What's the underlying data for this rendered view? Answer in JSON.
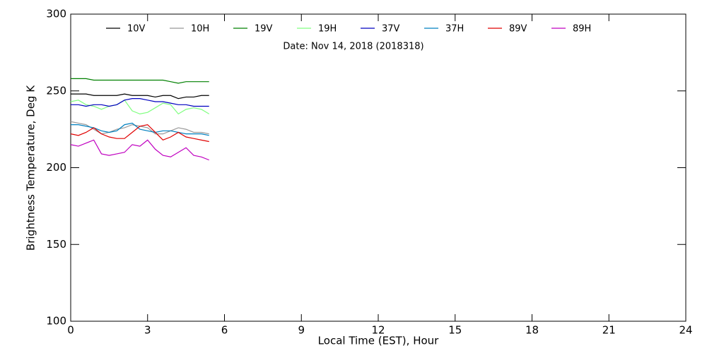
{
  "chart_data": {
    "type": "line",
    "subtitle": "Date: Nov 14, 2018 (2018318)",
    "xlabel": "Local Time (EST), Hour",
    "ylabel": "Brightness Temperature, Deg K",
    "x": [
      0,
      0.3,
      0.6,
      0.9,
      1.2,
      1.5,
      1.8,
      2.1,
      2.4,
      2.7,
      3.0,
      3.3,
      3.6,
      3.9,
      4.2,
      4.5,
      4.8,
      5.1,
      5.4
    ],
    "xlim": [
      0,
      24
    ],
    "xticks": [
      0,
      3,
      6,
      9,
      12,
      15,
      18,
      21,
      24
    ],
    "ylim": [
      100,
      300
    ],
    "yticks": [
      100,
      150,
      200,
      250,
      300
    ],
    "series": [
      {
        "name": "10V",
        "color": "#000000",
        "values": [
          248,
          248,
          248,
          247,
          247,
          247,
          247,
          248,
          247,
          247,
          247,
          246,
          247,
          247,
          245,
          246,
          246,
          247,
          247
        ]
      },
      {
        "name": "10H",
        "color": "#999999",
        "values": [
          230,
          229,
          228,
          225,
          222,
          223,
          225,
          226,
          228,
          227,
          226,
          222,
          222,
          224,
          226,
          225,
          223,
          223,
          222
        ]
      },
      {
        "name": "19V",
        "color": "#008000",
        "values": [
          258,
          258,
          258,
          257,
          257,
          257,
          257,
          257,
          257,
          257,
          257,
          257,
          257,
          256,
          255,
          256,
          256,
          256,
          256
        ]
      },
      {
        "name": "19H",
        "color": "#80ff80",
        "values": [
          243,
          244,
          241,
          240,
          238,
          240,
          241,
          244,
          237,
          235,
          236,
          239,
          242,
          241,
          235,
          238,
          239,
          238,
          235
        ]
      },
      {
        "name": "37V",
        "color": "#0000c0",
        "values": [
          241,
          241,
          240,
          241,
          241,
          240,
          241,
          244,
          245,
          245,
          244,
          243,
          243,
          242,
          241,
          241,
          240,
          240,
          240
        ]
      },
      {
        "name": "37H",
        "color": "#0080c0",
        "values": [
          228,
          228,
          227,
          226,
          224,
          223,
          224,
          228,
          229,
          225,
          224,
          223,
          224,
          224,
          223,
          222,
          222,
          222,
          221
        ]
      },
      {
        "name": "89V",
        "color": "#e00000",
        "values": [
          222,
          221,
          223,
          226,
          222,
          220,
          219,
          219,
          223,
          227,
          228,
          223,
          218,
          220,
          223,
          220,
          219,
          218,
          217
        ]
      },
      {
        "name": "89H",
        "color": "#c000c0",
        "values": [
          215,
          214,
          216,
          218,
          209,
          208,
          209,
          210,
          215,
          214,
          218,
          212,
          208,
          207,
          210,
          213,
          208,
          207,
          205
        ]
      }
    ]
  }
}
